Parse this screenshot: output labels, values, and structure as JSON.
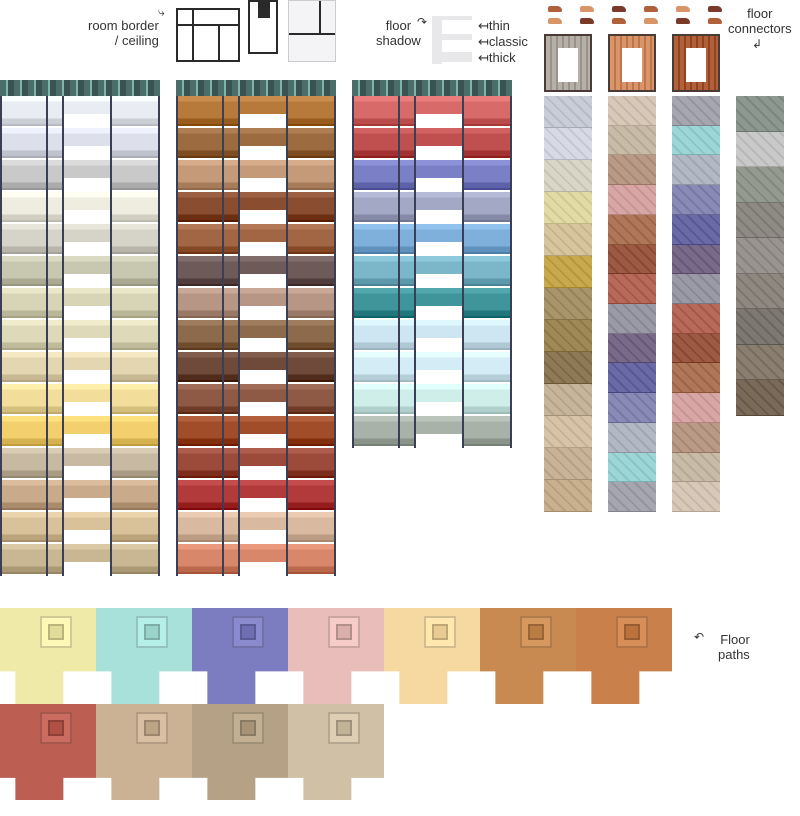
{
  "labels": {
    "room_border_line1": "room border",
    "room_border_line2": "/ ceiling",
    "floor_shadow_line1": "floor",
    "floor_shadow_line2": "shadow",
    "shadow_thin": "thin",
    "shadow_classic": "classic",
    "shadow_thick": "thick",
    "floor_connectors_line1": "floor",
    "floor_connectors_line2": "connectors",
    "floor_paths_line1": "Floor",
    "floor_paths_line2": "paths"
  },
  "palettes": {
    "column_a": [
      "#e9ecf2",
      "#dde0ea",
      "#c9c9c9",
      "#efece0",
      "#d6d4c8",
      "#c8c7b0",
      "#d7d5b5",
      "#ded9b9",
      "#e3d6b0",
      "#f2dd9a",
      "#f3cf6e",
      "#c7b9a2",
      "#c9aa8a",
      "#d9c29a",
      "#c9b693"
    ],
    "column_b": [
      "#b77a3a",
      "#9c6b3f",
      "#c59a79",
      "#8a4d2f",
      "#a36645",
      "#6e5a58",
      "#b89686",
      "#8c6a4b",
      "#6f4a3a",
      "#8e5a45",
      "#a14d2a",
      "#9c4a3a",
      "#b33a3a",
      "#d9b99f",
      "#d9876a"
    ],
    "column_c": [
      "#d86a6a",
      "#c05050",
      "#7a7fc6",
      "#a3a8c4",
      "#7fb0dc",
      "#7bb6c9",
      "#3f9599",
      "#cde6f2",
      "#d4ecf6",
      "#cfeeea",
      "#a8b2a8"
    ],
    "connectors": [
      "#b6b0a8",
      "#d9946a",
      "#b0603a"
    ],
    "tiles_a": [
      "#c9cdd8",
      "#d7dae4",
      "#d9d6c7",
      "#e3dba5",
      "#d7c69d",
      "#c9a94e",
      "#a8956a",
      "#9f8a57",
      "#8e7a56",
      "#c6b59a",
      "#d7c4a8",
      "#c8b399",
      "#c9b08e"
    ],
    "tiles_b": [
      "#d7c8b8",
      "#c8bba8",
      "#b89a86",
      "#d9a6a6",
      "#b0765a",
      "#9c5a44",
      "#b86a5a",
      "#9a9aa6",
      "#7a6a8a",
      "#6a6aa6",
      "#8a8ab6",
      "#b2b8c4",
      "#9cd6d6",
      "#a6a6b0"
    ],
    "tiles_c": [
      "#8d9890",
      "#c9c9c9",
      "#959a90",
      "#8e8a84",
      "#9a9490",
      "#8e8880",
      "#7e7872",
      "#8a7e70",
      "#7a6a5a"
    ],
    "paths": [
      "#f0eaa8",
      "#a8e0da",
      "#7c7cc0",
      "#e9bdb9",
      "#f6d9a0",
      "#c98a52",
      "#c9804a",
      "#bd5e52",
      "#cbb294",
      "#b5a286",
      "#cfc0a6"
    ],
    "accent_line": "#3a3f55"
  }
}
